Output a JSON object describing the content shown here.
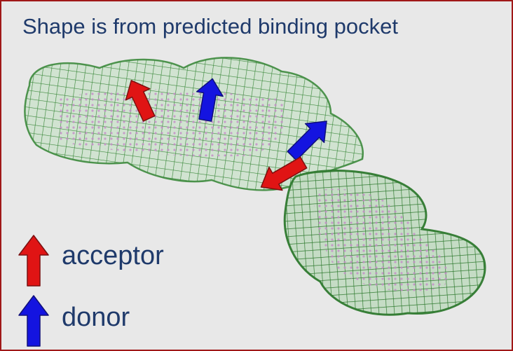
{
  "header": {
    "title": "Shape is from predicted binding pocket"
  },
  "legend": [
    {
      "label": "acceptor"
    },
    {
      "label": "donor"
    }
  ]
}
